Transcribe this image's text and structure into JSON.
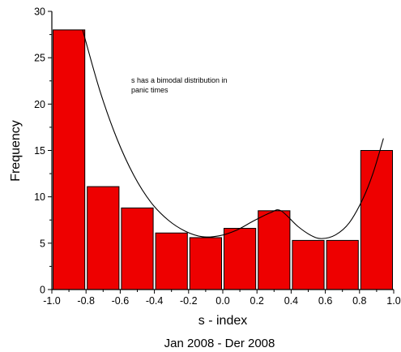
{
  "chart_data": {
    "type": "bar",
    "xlabel": "s - index",
    "ylabel": "Frequency",
    "subtitle": "Jan 2008 - Der 2008",
    "annotation": [
      "s has a bimodal distribution in",
      "panic times"
    ],
    "xlim": [
      -1.0,
      1.0
    ],
    "ylim": [
      0,
      30
    ],
    "x_ticks": [
      "-1.0",
      "-0.8",
      "-0.6",
      "-0.4",
      "-0.2",
      "0.0",
      "0.2",
      "0.4",
      "0.6",
      "0.8",
      "1.0"
    ],
    "y_ticks": [
      "0",
      "5",
      "10",
      "15",
      "20",
      "25",
      "30"
    ],
    "bin_width": 0.2,
    "bins": [
      {
        "x": -0.9,
        "value": 28
      },
      {
        "x": -0.7,
        "value": 11.1
      },
      {
        "x": -0.5,
        "value": 8.8
      },
      {
        "x": -0.3,
        "value": 6.1
      },
      {
        "x": -0.1,
        "value": 5.6
      },
      {
        "x": 0.1,
        "value": 6.6
      },
      {
        "x": 0.3,
        "value": 8.5
      },
      {
        "x": 0.5,
        "value": 5.3
      },
      {
        "x": 0.7,
        "value": 5.3
      },
      {
        "x": 0.9,
        "value": 15
      }
    ],
    "fit_curve": [
      {
        "x": -0.82,
        "y": 28.0
      },
      {
        "x": -0.72,
        "y": 21.5
      },
      {
        "x": -0.62,
        "y": 16.3
      },
      {
        "x": -0.52,
        "y": 12.3
      },
      {
        "x": -0.42,
        "y": 9.4
      },
      {
        "x": -0.32,
        "y": 7.5
      },
      {
        "x": -0.22,
        "y": 6.3
      },
      {
        "x": -0.12,
        "y": 5.7
      },
      {
        "x": -0.02,
        "y": 5.8
      },
      {
        "x": 0.08,
        "y": 6.4
      },
      {
        "x": 0.18,
        "y": 7.4
      },
      {
        "x": 0.28,
        "y": 8.3
      },
      {
        "x": 0.34,
        "y": 8.5
      },
      {
        "x": 0.44,
        "y": 6.8
      },
      {
        "x": 0.52,
        "y": 5.8
      },
      {
        "x": 0.58,
        "y": 5.5
      },
      {
        "x": 0.66,
        "y": 5.9
      },
      {
        "x": 0.74,
        "y": 7.2
      },
      {
        "x": 0.82,
        "y": 9.8
      },
      {
        "x": 0.88,
        "y": 12.6
      },
      {
        "x": 0.94,
        "y": 16.3
      }
    ],
    "bar_color": "#ee0000",
    "bar_edge_color": "#000000",
    "curve_color": "#000000",
    "grid": false,
    "legend": "none"
  }
}
